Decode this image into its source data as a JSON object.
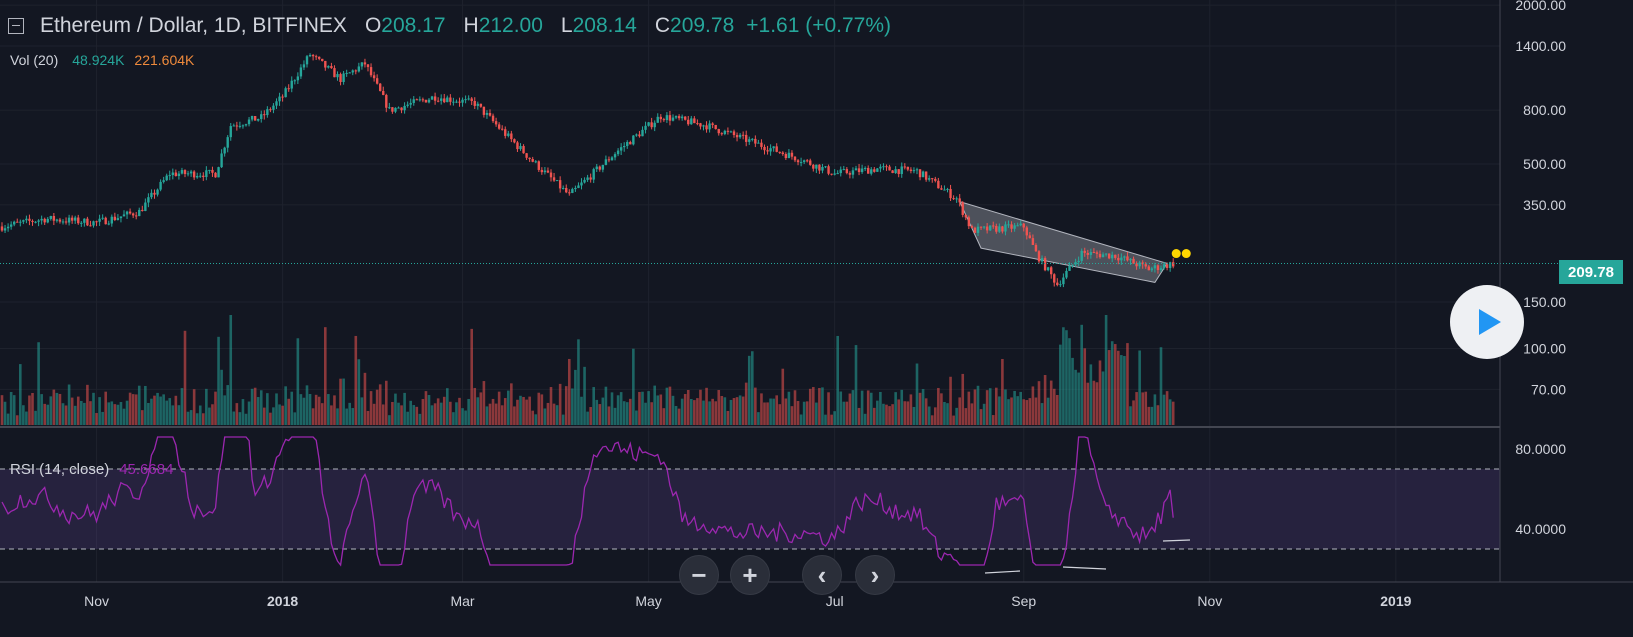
{
  "legend": {
    "title": "Ethereum / Dollar, 1D, BITFINEX",
    "open_label": "O",
    "open": "208.17",
    "high_label": "H",
    "high": "212.00",
    "low_label": "L",
    "low": "208.14",
    "close_label": "C",
    "close": "209.78",
    "change": "+1.61 (+0.77%)"
  },
  "volume": {
    "label": "Vol (20)",
    "value": "48.924K",
    "ma": "221.604K"
  },
  "rsi": {
    "label": "RSI (14, close)",
    "value": "45.6684"
  },
  "last_price": "209.78",
  "controls": {
    "zoom_out": "−",
    "zoom_in": "+",
    "prev": "‹",
    "next": "›"
  },
  "colors": {
    "up": "#26a69a",
    "down": "#ef5350",
    "rsi": "#9c27b0",
    "grid": "#1e222d",
    "background": "#131722"
  },
  "chart_data": [
    {
      "type": "candlestick",
      "scale": "log",
      "y_ticks": [
        70,
        100,
        150,
        350,
        500,
        800,
        1400,
        2000
      ],
      "x_ticks": [
        "Nov",
        "2018",
        "Mar",
        "May",
        "Jul",
        "Sep",
        "Nov",
        "2019"
      ],
      "close_path": [
        [
          "2017-10-01",
          290
        ],
        [
          "2017-10-15",
          310
        ],
        [
          "2017-11-01",
          300
        ],
        [
          "2017-11-15",
          330
        ],
        [
          "2017-11-25",
          460
        ],
        [
          "2017-12-10",
          460
        ],
        [
          "2017-12-15",
          700
        ],
        [
          "2017-12-25",
          750
        ],
        [
          "2018-01-01",
          900
        ],
        [
          "2018-01-10",
          1300
        ],
        [
          "2018-01-20",
          1050
        ],
        [
          "2018-01-28",
          1200
        ],
        [
          "2018-02-05",
          800
        ],
        [
          "2018-02-20",
          900
        ],
        [
          "2018-03-05",
          850
        ],
        [
          "2018-03-15",
          650
        ],
        [
          "2018-03-25",
          500
        ],
        [
          "2018-04-05",
          380
        ],
        [
          "2018-04-20",
          550
        ],
        [
          "2018-05-05",
          760
        ],
        [
          "2018-05-20",
          700
        ],
        [
          "2018-06-05",
          600
        ],
        [
          "2018-06-20",
          520
        ],
        [
          "2018-07-01",
          460
        ],
        [
          "2018-07-15",
          480
        ],
        [
          "2018-07-28",
          470
        ],
        [
          "2018-08-10",
          370
        ],
        [
          "2018-08-15",
          280
        ],
        [
          "2018-09-01",
          290
        ],
        [
          "2018-09-05",
          230
        ],
        [
          "2018-09-12",
          175
        ],
        [
          "2018-09-20",
          230
        ],
        [
          "2018-10-01",
          225
        ],
        [
          "2018-10-12",
          200
        ],
        [
          "2018-10-20",
          209.78
        ]
      ]
    },
    {
      "type": "bar",
      "name": "Vol (20)"
    },
    {
      "type": "line",
      "name": "RSI (14, close)",
      "y_ticks": [
        40,
        80
      ],
      "bands": [
        30,
        70
      ],
      "last": 45.6684
    }
  ]
}
